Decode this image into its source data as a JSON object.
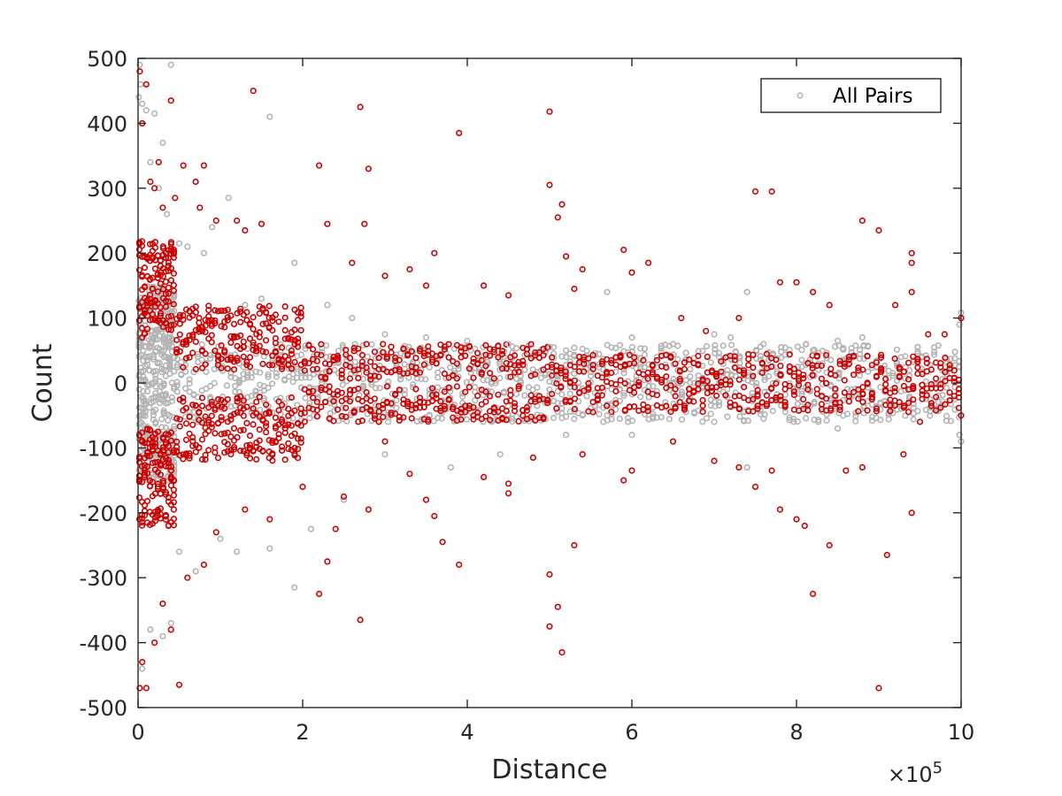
{
  "chart_data": {
    "type": "scatter",
    "title": "",
    "xlabel": "Distance",
    "ylabel": "Count",
    "x_exponent_label": "×10",
    "x_exponent_power": "5",
    "xlim": [
      0,
      1000000
    ],
    "ylim": [
      -500,
      500
    ],
    "x_ticks": [
      0,
      200000,
      400000,
      600000,
      800000,
      1000000
    ],
    "x_tick_labels": [
      "0",
      "2",
      "4",
      "6",
      "8",
      "10"
    ],
    "y_ticks": [
      500,
      400,
      300,
      200,
      100,
      0,
      -100,
      -200,
      -300,
      -400,
      -500
    ],
    "y_tick_labels": [
      "500",
      "400",
      "300",
      "200",
      "100",
      "0",
      "-100",
      "-200",
      "-300",
      "-400",
      "-500"
    ],
    "grid": false,
    "legend": {
      "position": "top-right",
      "entries": [
        "All Pairs"
      ]
    },
    "colors": {
      "all_pairs": "#b3b3b3",
      "highlighted": "#cc0000",
      "axis": "#262626"
    },
    "series": [
      {
        "name": "All Pairs",
        "marker": "open-circle",
        "points": [
          [
            2000,
            490
          ],
          [
            3000,
            460
          ],
          [
            1000,
            440
          ],
          [
            5000,
            430
          ],
          [
            10000,
            420
          ],
          [
            20000,
            415
          ],
          [
            30000,
            370
          ],
          [
            40000,
            490
          ],
          [
            15000,
            340
          ],
          [
            25000,
            300
          ],
          [
            35000,
            260
          ],
          [
            50000,
            215
          ],
          [
            60000,
            210
          ],
          [
            70000,
            310
          ],
          [
            80000,
            200
          ],
          [
            90000,
            240
          ],
          [
            110000,
            285
          ],
          [
            130000,
            120
          ],
          [
            150000,
            130
          ],
          [
            160000,
            410
          ],
          [
            190000,
            185
          ],
          [
            230000,
            120
          ],
          [
            260000,
            100
          ],
          [
            300000,
            75
          ],
          [
            350000,
            70
          ],
          [
            400000,
            65
          ],
          [
            450000,
            60
          ],
          [
            500000,
            55
          ],
          [
            570000,
            140
          ],
          [
            600000,
            70
          ],
          [
            650000,
            60
          ],
          [
            700000,
            75
          ],
          [
            720000,
            70
          ],
          [
            740000,
            140
          ],
          [
            760000,
            60
          ],
          [
            820000,
            50
          ],
          [
            850000,
            65
          ],
          [
            880000,
            70
          ],
          [
            1000000,
            108
          ],
          [
            998000,
            90
          ],
          [
            2000,
            -470
          ],
          [
            5000,
            -440
          ],
          [
            15000,
            -380
          ],
          [
            30000,
            -390
          ],
          [
            40000,
            -370
          ],
          [
            50000,
            -260
          ],
          [
            70000,
            -290
          ],
          [
            100000,
            -240
          ],
          [
            120000,
            -260
          ],
          [
            160000,
            -255
          ],
          [
            190000,
            -315
          ],
          [
            210000,
            -225
          ],
          [
            250000,
            -180
          ],
          [
            300000,
            -110
          ],
          [
            380000,
            -130
          ],
          [
            440000,
            -110
          ],
          [
            520000,
            -80
          ],
          [
            570000,
            -50
          ],
          [
            600000,
            -80
          ],
          [
            700000,
            -60
          ],
          [
            740000,
            -130
          ],
          [
            760000,
            -55
          ],
          [
            850000,
            -70
          ],
          [
            1000000,
            -90
          ],
          [
            998000,
            -80
          ]
        ]
      },
      {
        "name": "",
        "marker": "open-circle",
        "points": [
          [
            2000,
            480
          ],
          [
            10000,
            460
          ],
          [
            40000,
            435
          ],
          [
            5000,
            400
          ],
          [
            25000,
            340
          ],
          [
            15000,
            310
          ],
          [
            30000,
            270
          ],
          [
            20000,
            300
          ],
          [
            55000,
            335
          ],
          [
            80000,
            335
          ],
          [
            70000,
            310
          ],
          [
            45000,
            285
          ],
          [
            95000,
            250
          ],
          [
            75000,
            270
          ],
          [
            120000,
            250
          ],
          [
            140000,
            450
          ],
          [
            150000,
            245
          ],
          [
            130000,
            235
          ],
          [
            220000,
            335
          ],
          [
            230000,
            245
          ],
          [
            260000,
            185
          ],
          [
            270000,
            425
          ],
          [
            280000,
            330
          ],
          [
            275000,
            245
          ],
          [
            300000,
            165
          ],
          [
            330000,
            175
          ],
          [
            350000,
            150
          ],
          [
            360000,
            200
          ],
          [
            390000,
            385
          ],
          [
            420000,
            150
          ],
          [
            450000,
            135
          ],
          [
            500000,
            418
          ],
          [
            500000,
            305
          ],
          [
            510000,
            255
          ],
          [
            515000,
            275
          ],
          [
            520000,
            195
          ],
          [
            540000,
            175
          ],
          [
            530000,
            145
          ],
          [
            590000,
            205
          ],
          [
            600000,
            170
          ],
          [
            620000,
            185
          ],
          [
            660000,
            100
          ],
          [
            690000,
            80
          ],
          [
            730000,
            100
          ],
          [
            750000,
            295
          ],
          [
            770000,
            295
          ],
          [
            780000,
            155
          ],
          [
            800000,
            155
          ],
          [
            820000,
            140
          ],
          [
            840000,
            120
          ],
          [
            880000,
            250
          ],
          [
            900000,
            235
          ],
          [
            920000,
            120
          ],
          [
            940000,
            200
          ],
          [
            940000,
            185
          ],
          [
            940000,
            140
          ],
          [
            960000,
            75
          ],
          [
            980000,
            75
          ],
          [
            1000000,
            100
          ],
          [
            2000,
            -470
          ],
          [
            10000,
            -470
          ],
          [
            5000,
            -430
          ],
          [
            20000,
            -400
          ],
          [
            40000,
            -380
          ],
          [
            30000,
            -340
          ],
          [
            50000,
            -465
          ],
          [
            60000,
            -300
          ],
          [
            80000,
            -280
          ],
          [
            95000,
            -230
          ],
          [
            130000,
            -195
          ],
          [
            160000,
            -210
          ],
          [
            200000,
            -160
          ],
          [
            220000,
            -325
          ],
          [
            230000,
            -275
          ],
          [
            240000,
            -225
          ],
          [
            250000,
            -175
          ],
          [
            270000,
            -365
          ],
          [
            280000,
            -195
          ],
          [
            300000,
            -90
          ],
          [
            330000,
            -140
          ],
          [
            350000,
            -180
          ],
          [
            360000,
            -205
          ],
          [
            370000,
            -245
          ],
          [
            390000,
            -280
          ],
          [
            420000,
            -145
          ],
          [
            450000,
            -155
          ],
          [
            450000,
            -170
          ],
          [
            480000,
            -115
          ],
          [
            500000,
            -295
          ],
          [
            500000,
            -375
          ],
          [
            510000,
            -345
          ],
          [
            515000,
            -415
          ],
          [
            530000,
            -250
          ],
          [
            540000,
            -110
          ],
          [
            590000,
            -150
          ],
          [
            600000,
            -135
          ],
          [
            650000,
            -90
          ],
          [
            700000,
            -120
          ],
          [
            730000,
            -130
          ],
          [
            750000,
            -160
          ],
          [
            770000,
            -135
          ],
          [
            780000,
            -195
          ],
          [
            800000,
            -210
          ],
          [
            810000,
            -220
          ],
          [
            820000,
            -325
          ],
          [
            840000,
            -250
          ],
          [
            860000,
            -135
          ],
          [
            880000,
            -130
          ],
          [
            900000,
            -470
          ],
          [
            910000,
            -265
          ],
          [
            930000,
            -110
          ],
          [
            940000,
            -200
          ],
          [
            950000,
            -60
          ],
          [
            1000000,
            -50
          ]
        ]
      }
    ],
    "bands": [
      {
        "series": "All Pairs",
        "x_start": 0,
        "x_end": 45000,
        "y_min": -150,
        "y_max": 150,
        "n_cols": 18,
        "n_per_col": 22
      },
      {
        "series": "All Pairs",
        "x_start": 45000,
        "x_end": 1000000,
        "y_min": -60,
        "y_max": 60,
        "n_cols": 190,
        "n_per_col": 6
      },
      {
        "series": "highlight",
        "x_start": 0,
        "x_end": 45000,
        "y_min": 70,
        "y_max": 220,
        "n_cols": 14,
        "n_per_col": 10
      },
      {
        "series": "highlight",
        "x_start": 0,
        "x_end": 45000,
        "y_min": -220,
        "y_max": -70,
        "n_cols": 14,
        "n_per_col": 10
      },
      {
        "series": "highlight",
        "x_start": 45000,
        "x_end": 200000,
        "y_min": 20,
        "y_max": 120,
        "n_cols": 40,
        "n_per_col": 5
      },
      {
        "series": "highlight",
        "x_start": 45000,
        "x_end": 200000,
        "y_min": -120,
        "y_max": -20,
        "n_cols": 40,
        "n_per_col": 5
      },
      {
        "series": "highlight",
        "x_start": 200000,
        "x_end": 500000,
        "y_min": 5,
        "y_max": 60,
        "n_cols": 60,
        "n_per_col": 3
      },
      {
        "series": "highlight",
        "x_start": 200000,
        "x_end": 500000,
        "y_min": -60,
        "y_max": -5,
        "n_cols": 60,
        "n_per_col": 3
      },
      {
        "series": "highlight",
        "x_start": 500000,
        "x_end": 1000000,
        "y_min": -45,
        "y_max": 45,
        "n_cols": 90,
        "n_per_col": 5
      }
    ]
  }
}
